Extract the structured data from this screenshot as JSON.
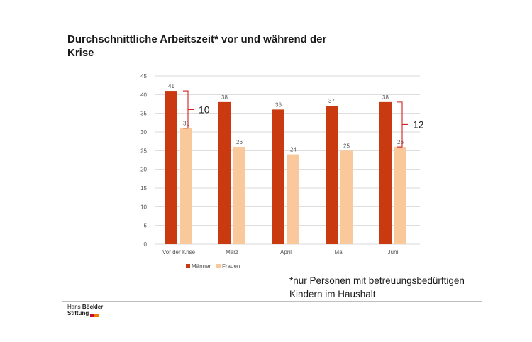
{
  "title": "Durchschnittliche Arbeitszeit* vor und während der Krise",
  "footnote_line1": "*nur Personen mit betreuungsbedürftigen",
  "footnote_line2": "Kindern im Haushalt",
  "logo": {
    "line1_regular": "Hans ",
    "line1_bold": "Böckler",
    "line2": "Stiftung"
  },
  "colors": {
    "men": "#c93a10",
    "women": "#f9c89b",
    "grid": "#d9d9d9",
    "bracket": "#d32020",
    "logo_red": "#c8102e",
    "logo_orange": "#f07d00"
  },
  "chart_data": {
    "type": "bar",
    "categories": [
      "Vor der Krise",
      "März",
      "April",
      "Mai",
      "Juni"
    ],
    "series": [
      {
        "name": "Männer",
        "values": [
          41,
          38,
          36,
          37,
          38
        ]
      },
      {
        "name": "Frauen",
        "values": [
          31,
          26,
          24,
          25,
          26
        ]
      }
    ],
    "ylim": [
      0,
      45
    ],
    "yticks": [
      0,
      5,
      10,
      15,
      20,
      25,
      30,
      35,
      40,
      45
    ],
    "grid": true,
    "legend": "bottom-left",
    "annotations": [
      {
        "category": "Vor der Krise",
        "text": "10"
      },
      {
        "category": "Juni",
        "text": "12"
      }
    ]
  }
}
